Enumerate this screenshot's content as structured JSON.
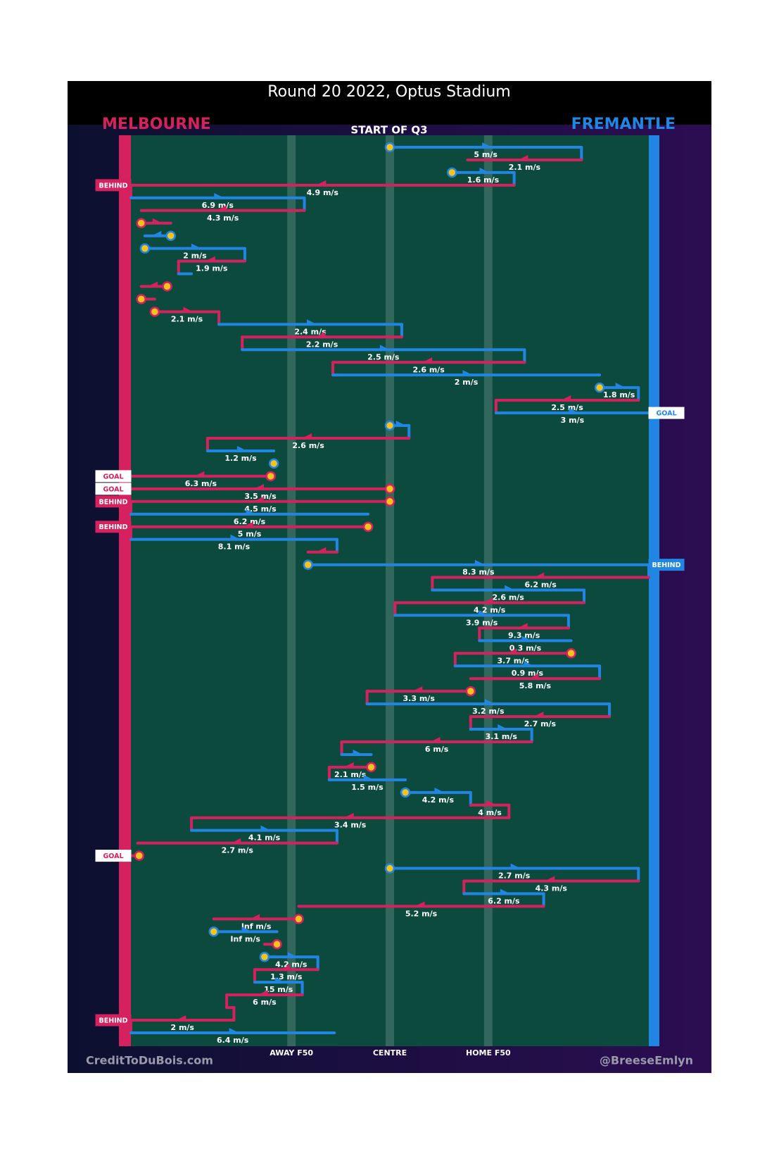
{
  "chart_data": {
    "type": "chain",
    "title": "Round 20 2022, Optus Stadium",
    "subtitle": "START OF Q3",
    "teams": [
      {
        "name": "MELBOURNE",
        "color": "#d6215f"
      },
      {
        "name": "FREMANTLE",
        "color": "#2186e3"
      }
    ],
    "xlim": [
      0,
      100
    ],
    "xticks": [
      {
        "value": 31,
        "label": "AWAY F50"
      },
      {
        "value": 50,
        "label": "CENTRE"
      },
      {
        "value": 69,
        "label": "HOME F50"
      }
    ],
    "credit_left": "CreditToDuBois.com",
    "credit_right": "@BreeseEmlyn",
    "chains": [
      {
        "team": "FREMANTLE",
        "from": 50,
        "to": 87,
        "speed": "5 m/s",
        "stoppage": true
      },
      {
        "team": "MELBOURNE",
        "from": 87,
        "to": 65,
        "speed": "2.1 m/s"
      },
      {
        "team": "FREMANTLE",
        "from": 62,
        "to": 74,
        "speed": "1.6 m/s",
        "stoppage": true
      },
      {
        "team": "MELBOURNE",
        "from": 74,
        "to": 0,
        "speed": "4.9 m/s",
        "result": "BEHIND"
      },
      {
        "team": "FREMANTLE",
        "from": 0,
        "to": 33.5,
        "speed": "6.9 m/s"
      },
      {
        "team": "MELBOURNE",
        "from": 33.5,
        "to": 2,
        "speed": "4.3 m/s"
      },
      {
        "team": "MELBOURNE",
        "from": 2,
        "to": 7.7,
        "stoppage": true
      },
      {
        "team": "FREMANTLE",
        "from": 7.7,
        "to": 2.7,
        "stoppage": true
      },
      {
        "team": "FREMANTLE",
        "from": 2.7,
        "to": 22,
        "speed": "2 m/s",
        "stoppage": true
      },
      {
        "team": "MELBOURNE",
        "from": 22,
        "to": 9.2,
        "speed": "1.9 m/s"
      },
      {
        "team": "FREMANTLE",
        "from": 9.2,
        "to": 11.7
      },
      {
        "team": "MELBOURNE",
        "from": 7,
        "to": 2,
        "stoppage": true
      },
      {
        "team": "MELBOURNE",
        "from": 2,
        "to": 4.6,
        "stoppage": true
      },
      {
        "team": "MELBOURNE",
        "from": 4.6,
        "to": 17,
        "speed": "2.1 m/s",
        "stoppage": true
      },
      {
        "team": "FREMANTLE",
        "from": 17,
        "to": 52.3,
        "speed": "2.4 m/s"
      },
      {
        "team": "MELBOURNE",
        "from": 52.3,
        "to": 21.5,
        "speed": "2.2 m/s"
      },
      {
        "team": "FREMANTLE",
        "from": 21.5,
        "to": 76,
        "speed": "2.5 m/s"
      },
      {
        "team": "MELBOURNE",
        "from": 76,
        "to": 39,
        "speed": "2.6 m/s"
      },
      {
        "team": "FREMANTLE",
        "from": 39,
        "to": 90.5,
        "speed": "2 m/s"
      },
      {
        "team": "FREMANTLE",
        "from": 90.5,
        "to": 98,
        "speed": "1.8 m/s",
        "stoppage": true
      },
      {
        "team": "MELBOURNE",
        "from": 98,
        "to": 70.5,
        "speed": "2.5 m/s"
      },
      {
        "team": "FREMANTLE",
        "from": 70.5,
        "to": 100,
        "speed": "3 m/s",
        "result": "GOAL"
      },
      {
        "team": "FREMANTLE",
        "from": 50,
        "to": 53.7,
        "stoppage": true
      },
      {
        "team": "MELBOURNE",
        "from": 53.7,
        "to": 14.8,
        "speed": "2.6 m/s"
      },
      {
        "team": "FREMANTLE",
        "from": 14.8,
        "to": 27.6,
        "speed": "1.2 m/s"
      },
      {
        "team": "FREMANTLE",
        "from": 27.6,
        "to": 27,
        "stoppage": true
      },
      {
        "team": "MELBOURNE",
        "from": 27,
        "to": 0,
        "speed": "6.3 m/s",
        "stoppage": true,
        "result": "GOAL"
      },
      {
        "team": "MELBOURNE",
        "from": 50,
        "to": 0,
        "speed": "3.5 m/s",
        "stoppage": true,
        "result": "GOAL"
      },
      {
        "team": "MELBOURNE",
        "from": 50,
        "to": 0,
        "speed": "4.5 m/s",
        "stoppage": true,
        "result": "BEHIND"
      },
      {
        "team": "FREMANTLE",
        "from": 0,
        "to": 45.8,
        "speed": "6.2 m/s"
      },
      {
        "team": "MELBOURNE",
        "from": 45.8,
        "to": 0,
        "speed": "5 m/s",
        "stoppage": true,
        "result": "BEHIND"
      },
      {
        "team": "FREMANTLE",
        "from": 0,
        "to": 39.8,
        "speed": "8.1 m/s"
      },
      {
        "team": "MELBOURNE",
        "from": 39.8,
        "to": 34.2
      },
      {
        "team": "FREMANTLE",
        "from": 34.2,
        "to": 100,
        "speed": "8.3 m/s",
        "stoppage": true,
        "result": "BEHIND"
      },
      {
        "team": "MELBOURNE",
        "from": 100,
        "to": 58.2,
        "speed": "6.2 m/s"
      },
      {
        "team": "FREMANTLE",
        "from": 58.2,
        "to": 87.5,
        "speed": "2.6 m/s"
      },
      {
        "team": "MELBOURNE",
        "from": 87.5,
        "to": 51,
        "speed": "4.2 m/s"
      },
      {
        "team": "FREMANTLE",
        "from": 51,
        "to": 84.5,
        "speed": "3.9 m/s"
      },
      {
        "team": "MELBOURNE",
        "from": 84.5,
        "to": 67.3,
        "speed": "9.3 m/s"
      },
      {
        "team": "FREMANTLE",
        "from": 67.3,
        "to": 85,
        "speed": "0.3 m/s"
      },
      {
        "team": "MELBOURNE",
        "from": 85,
        "to": 62.6,
        "speed": "3.7 m/s",
        "stoppage": true
      },
      {
        "team": "FREMANTLE",
        "from": 62.6,
        "to": 90.5,
        "speed": "0.9 m/s"
      },
      {
        "team": "MELBOURNE",
        "from": 90.5,
        "to": 65.6,
        "speed": "5.8 m/s"
      },
      {
        "team": "MELBOURNE",
        "from": 65.6,
        "to": 45.6,
        "speed": "3.3 m/s",
        "stoppage": true
      },
      {
        "team": "FREMANTLE",
        "from": 45.6,
        "to": 92.4,
        "speed": "3.2 m/s"
      },
      {
        "team": "MELBOURNE",
        "from": 92.4,
        "to": 65.6,
        "speed": "2.7 m/s"
      },
      {
        "team": "FREMANTLE",
        "from": 65.6,
        "to": 77.4,
        "speed": "3.1 m/s"
      },
      {
        "team": "MELBOURNE",
        "from": 77.4,
        "to": 40.7,
        "speed": "6 m/s"
      },
      {
        "team": "FREMANTLE",
        "from": 40.7,
        "to": 46.4
      },
      {
        "team": "MELBOURNE",
        "from": 46.4,
        "to": 38.3,
        "speed": "2.1 m/s",
        "stoppage": true
      },
      {
        "team": "FREMANTLE",
        "from": 38.3,
        "to": 53,
        "speed": "1.5 m/s"
      },
      {
        "team": "FREMANTLE",
        "from": 53,
        "to": 65.6,
        "speed": "4.2 m/s",
        "stoppage": true
      },
      {
        "team": "MELBOURNE",
        "from": 65.6,
        "to": 73,
        "speed": "4 m/s"
      },
      {
        "team": "MELBOURNE",
        "from": 73,
        "to": 11.7,
        "speed": "3.4 m/s"
      },
      {
        "team": "FREMANTLE",
        "from": 11.7,
        "to": 39.8,
        "speed": "4.1 m/s"
      },
      {
        "team": "MELBOURNE",
        "from": 39.8,
        "to": 1.3,
        "speed": "2.7 m/s"
      },
      {
        "team": "MELBOURNE",
        "from": 1.6,
        "to": 0,
        "stoppage": true,
        "result": "GOAL"
      },
      {
        "team": "FREMANTLE",
        "from": 50,
        "to": 98,
        "speed": "2.7 m/s",
        "stoppage": true
      },
      {
        "team": "MELBOURNE",
        "from": 98,
        "to": 64.3,
        "speed": "4.3 m/s"
      },
      {
        "team": "FREMANTLE",
        "from": 64.3,
        "to": 79.7,
        "speed": "6.2 m/s"
      },
      {
        "team": "MELBOURNE",
        "from": 79.7,
        "to": 32.4,
        "speed": "5.2 m/s"
      },
      {
        "team": "MELBOURNE",
        "from": 32.4,
        "to": 16,
        "speed": "Inf m/s",
        "stoppage": true
      },
      {
        "team": "FREMANTLE",
        "from": 16,
        "to": 28.2,
        "speed": "Inf m/s",
        "stoppage": true
      },
      {
        "team": "MELBOURNE",
        "from": 28.2,
        "to": 25.8,
        "stoppage": true
      },
      {
        "team": "FREMANTLE",
        "from": 25.8,
        "to": 36.1,
        "speed": "4.2 m/s",
        "stoppage": true
      },
      {
        "team": "MELBOURNE",
        "from": 36.1,
        "to": 23.9,
        "speed": "1.3 m/s"
      },
      {
        "team": "FREMANTLE",
        "from": 23.9,
        "to": 33.1,
        "speed": "15 m/s"
      },
      {
        "team": "MELBOURNE",
        "from": 33.1,
        "to": 18.5,
        "speed": "6 m/s"
      },
      {
        "team": "MELBOURNE",
        "from": 18.5,
        "to": 19.9
      },
      {
        "team": "MELBOURNE",
        "from": 19.9,
        "to": 0,
        "speed": "2 m/s",
        "result": "BEHIND"
      },
      {
        "team": "FREMANTLE",
        "from": 0,
        "to": 39.3,
        "speed": "6.4 m/s"
      }
    ]
  }
}
